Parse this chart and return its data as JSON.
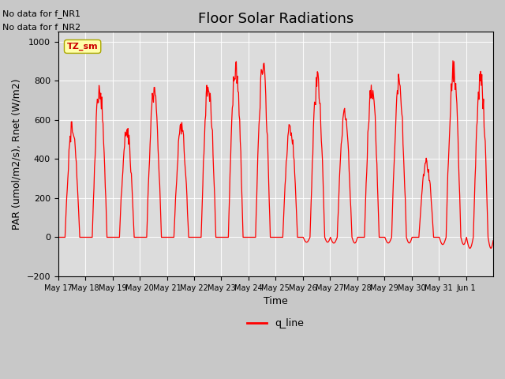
{
  "title": "Floor Solar Radiations",
  "xlabel": "Time",
  "ylabel": "PAR (umol/m2/s), Rnet (W/m2)",
  "ylim": [
    -200,
    1050
  ],
  "line_color": "#ff0000",
  "line_label": "q_line",
  "tz_label": "TZ_sm",
  "no_data_texts": [
    "No data for f_NR1",
    "No data for f_NR2"
  ],
  "x_tick_labels": [
    "May 17",
    "May 18",
    "May 19",
    "May 20",
    "May 21",
    "May 22",
    "May 23",
    "May 24",
    "May 25",
    "May 26",
    "May 27",
    "May 28",
    "May 29",
    "May 30",
    "May 31",
    "Jun 1"
  ],
  "daily_peaks": [
    610,
    820,
    590,
    800,
    600,
    835,
    950,
    930,
    607,
    850,
    667,
    830,
    845,
    413,
    930,
    870
  ],
  "figsize": [
    6.4,
    4.8
  ],
  "dpi": 100,
  "title_fontsize": 13,
  "label_fontsize": 9,
  "tick_fontsize": 8
}
